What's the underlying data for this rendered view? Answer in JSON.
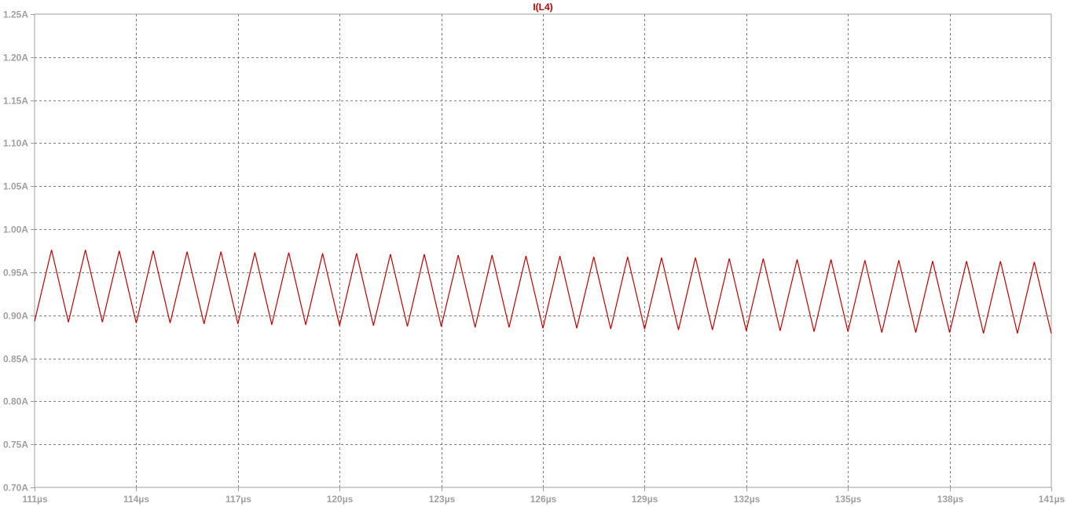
{
  "window": {
    "background": "#ffffff",
    "axis_color": "#a0a0a0",
    "grid_color": "#808080"
  },
  "chart_data": {
    "type": "line",
    "title": "I(L4)",
    "xlabel": "",
    "ylabel": "",
    "xlim": [
      111,
      141
    ],
    "ylim": [
      0.7,
      1.25
    ],
    "grid": true,
    "x_ticks": [
      111,
      114,
      117,
      120,
      123,
      126,
      129,
      132,
      135,
      138,
      141
    ],
    "x_tick_labels": [
      "111µs",
      "114µs",
      "117µs",
      "120µs",
      "123µs",
      "126µs",
      "129µs",
      "132µs",
      "135µs",
      "138µs",
      "141µs"
    ],
    "y_ticks": [
      0.7,
      0.75,
      0.8,
      0.85,
      0.9,
      0.95,
      1.0,
      1.05,
      1.1,
      1.15,
      1.2,
      1.25
    ],
    "y_tick_labels": [
      "0.70A",
      "0.75A",
      "0.80A",
      "0.85A",
      "0.90A",
      "0.95A",
      "1.00A",
      "1.05A",
      "1.10A",
      "1.15A",
      "1.20A",
      "1.25A"
    ],
    "series": [
      {
        "name": "I(L4)",
        "color": "#c00000",
        "x_unit": "µs",
        "y_unit": "A",
        "points": [
          [
            111.0,
            0.893
          ],
          [
            111.5,
            0.976
          ],
          [
            112.0,
            0.892
          ],
          [
            112.5,
            0.976
          ],
          [
            113.0,
            0.892
          ],
          [
            113.5,
            0.975
          ],
          [
            114.0,
            0.891
          ],
          [
            114.5,
            0.975
          ],
          [
            115.0,
            0.891
          ],
          [
            115.5,
            0.974
          ],
          [
            116.0,
            0.89
          ],
          [
            116.5,
            0.974
          ],
          [
            117.0,
            0.89
          ],
          [
            117.5,
            0.973
          ],
          [
            118.0,
            0.889
          ],
          [
            118.5,
            0.973
          ],
          [
            119.0,
            0.889
          ],
          [
            119.5,
            0.972
          ],
          [
            120.0,
            0.888
          ],
          [
            120.5,
            0.972
          ],
          [
            121.0,
            0.888
          ],
          [
            121.5,
            0.971
          ],
          [
            122.0,
            0.887
          ],
          [
            122.5,
            0.971
          ],
          [
            123.0,
            0.887
          ],
          [
            123.5,
            0.97
          ],
          [
            124.0,
            0.886
          ],
          [
            124.5,
            0.97
          ],
          [
            125.0,
            0.886
          ],
          [
            125.5,
            0.969
          ],
          [
            126.0,
            0.885
          ],
          [
            126.5,
            0.969
          ],
          [
            127.0,
            0.885
          ],
          [
            127.5,
            0.968
          ],
          [
            128.0,
            0.884
          ],
          [
            128.5,
            0.968
          ],
          [
            129.0,
            0.884
          ],
          [
            129.5,
            0.967
          ],
          [
            130.0,
            0.883
          ],
          [
            130.5,
            0.967
          ],
          [
            131.0,
            0.883
          ],
          [
            131.5,
            0.966
          ],
          [
            132.0,
            0.882
          ],
          [
            132.5,
            0.966
          ],
          [
            133.0,
            0.882
          ],
          [
            133.5,
            0.965
          ],
          [
            134.0,
            0.881
          ],
          [
            134.5,
            0.965
          ],
          [
            135.0,
            0.881
          ],
          [
            135.5,
            0.964
          ],
          [
            136.0,
            0.88
          ],
          [
            136.5,
            0.964
          ],
          [
            137.0,
            0.88
          ],
          [
            137.5,
            0.963
          ],
          [
            138.0,
            0.88
          ],
          [
            138.5,
            0.963
          ],
          [
            139.0,
            0.879
          ],
          [
            139.5,
            0.963
          ],
          [
            140.0,
            0.879
          ],
          [
            140.5,
            0.962
          ],
          [
            141.0,
            0.879
          ]
        ]
      }
    ]
  }
}
